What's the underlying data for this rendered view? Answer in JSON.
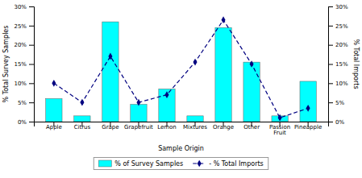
{
  "chart_data": {
    "type": "bar",
    "xlabel": "Sample Origin",
    "ylabel": "% Total Survey Samples",
    "y2label": "% Total Imports",
    "categories": [
      "Apple",
      "Citrus",
      "Grape",
      "Grapefruit",
      "Lemon",
      "Mixtures",
      "Orange",
      "Other",
      "Passion\nFruit",
      "Pineapple"
    ],
    "series": [
      {
        "name": "% of Survey Samples",
        "type": "bar",
        "color": "#00FFFF",
        "values": [
          6.0,
          1.5,
          26.0,
          4.5,
          8.5,
          1.5,
          24.5,
          15.5,
          1.5,
          10.5
        ]
      },
      {
        "name": "- % Total Imports",
        "type": "line",
        "color": "#000080",
        "marker": "diamond",
        "line_style": "dashed",
        "axis": "y2",
        "values": [
          10.0,
          5.0,
          17.0,
          5.0,
          7.0,
          15.5,
          26.5,
          15.0,
          1.0,
          3.5
        ]
      }
    ],
    "ylim": [
      0,
      30
    ],
    "yticks": [
      {
        "value": 0,
        "label": "0%"
      },
      {
        "value": 5,
        "label": "5%"
      },
      {
        "value": 10,
        "label": "10%"
      },
      {
        "value": 15,
        "label": "15%"
      },
      {
        "value": 20,
        "label": "20%"
      },
      {
        "value": 25,
        "label": "25%"
      },
      {
        "value": 30,
        "label": "30%"
      }
    ],
    "y2lim": [
      0,
      30
    ],
    "y2ticks": [
      {
        "value": 0,
        "label": "0%"
      },
      {
        "value": 5,
        "label": "5%"
      },
      {
        "value": 10,
        "label": "10%"
      },
      {
        "value": 15,
        "label": "15%"
      },
      {
        "value": 20,
        "label": "20%"
      },
      {
        "value": 25,
        "label": "25%"
      },
      {
        "value": 30,
        "label": "30%"
      }
    ],
    "grid": false,
    "legend": "bottom"
  }
}
